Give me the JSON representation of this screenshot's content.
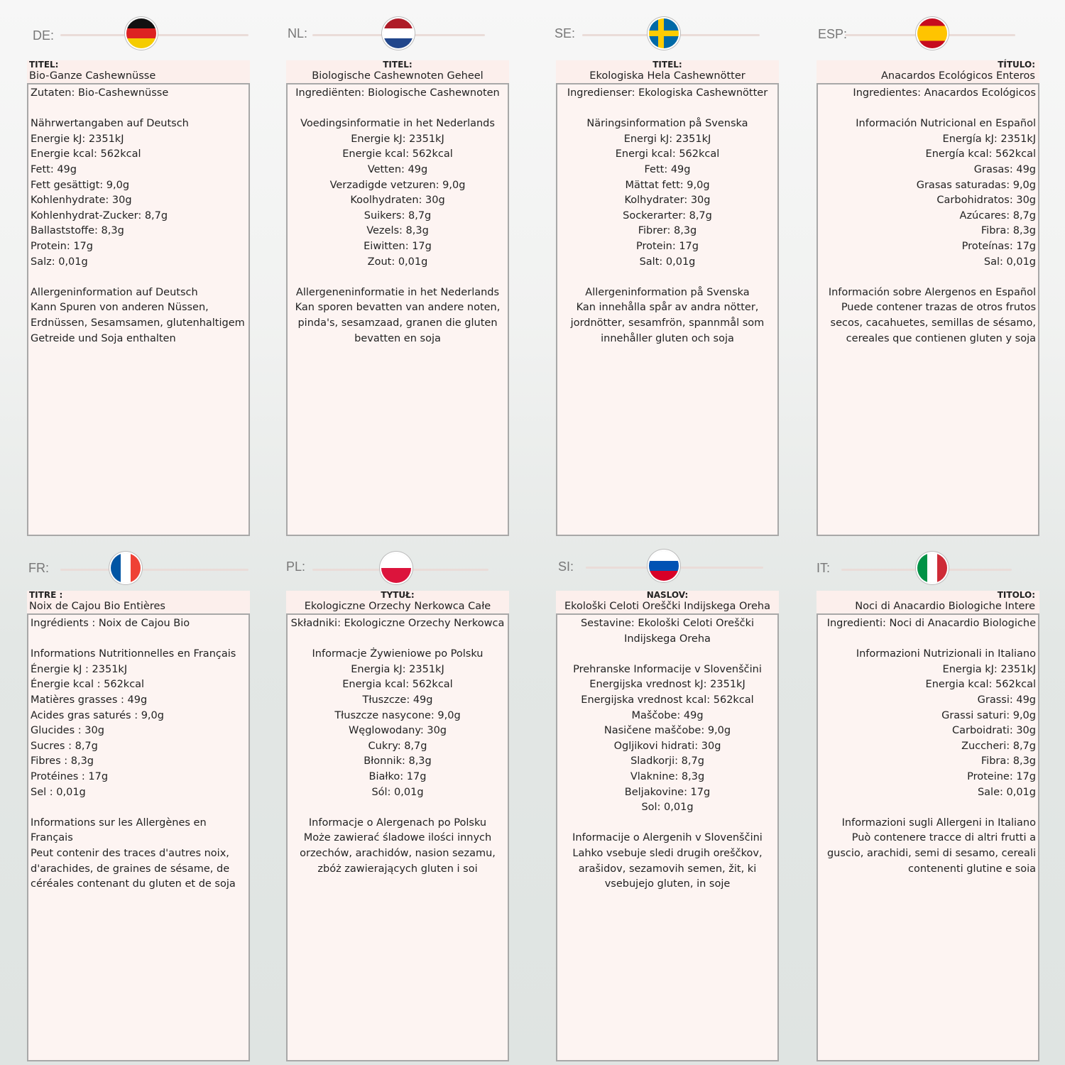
{
  "panels": [
    {
      "lang": "DE:",
      "flag": "germany",
      "title_label": "TITEL:",
      "title": "Bio-Ganze Cashewnüsse",
      "lines": [
        "Zutaten: Bio-Cashewnüsse",
        "",
        "Nährwertangaben auf Deutsch",
        "Energie kJ: 2351kJ",
        "Energie kcal: 562kcal",
        "Fett: 49g",
        "Fett gesättigt: 9,0g",
        "Kohlenhydrate: 30g",
        "Kohlenhydrat-Zucker: 8,7g",
        "Ballaststoffe: 8,3g",
        "Protein: 17g",
        "Salz: 0,01g",
        "",
        "Allergeninformation auf Deutsch",
        "Kann Spuren von anderen Nüssen,",
        "Erdnüssen, Sesamsamen, glutenhaltigem",
        "Getreide und Soja enthalten"
      ]
    },
    {
      "lang": "NL:",
      "flag": "netherlands",
      "title_label": "TITEL:",
      "title": "Biologische Cashewnoten Geheel",
      "lines": [
        "Ingrediënten: Biologische Cashewnoten",
        "",
        "Voedingsinformatie in het Nederlands",
        "Energie kJ: 2351kJ",
        "Energie kcal: 562kcal",
        "Vetten: 49g",
        "Verzadigde vetzuren: 9,0g",
        "Koolhydraten: 30g",
        "Suikers: 8,7g",
        "Vezels: 8,3g",
        "Eiwitten: 17g",
        "Zout: 0,01g",
        "",
        "Allergeneninformatie in het Nederlands",
        "Kan sporen bevatten van andere noten,",
        "pinda's, sesamzaad, granen die gluten",
        "bevatten en soja"
      ]
    },
    {
      "lang": "SE:",
      "flag": "sweden",
      "title_label": "TITEL:",
      "title": "Ekologiska Hela Cashewnötter",
      "lines": [
        "Ingredienser: Ekologiska Cashewnötter",
        "",
        "Näringsinformation på Svenska",
        "Energi kJ: 2351kJ",
        "Energi kcal: 562kcal",
        "Fett: 49g",
        "Mättat fett: 9,0g",
        "Kolhydrater: 30g",
        "Sockerarter: 8,7g",
        "Fibrer: 8,3g",
        "Protein: 17g",
        "Salt: 0,01g",
        "",
        "Allergeninformation på Svenska",
        "Kan innehålla spår av andra nötter,",
        "jordnötter, sesamfrön, spannmål som",
        "innehåller gluten och soja"
      ]
    },
    {
      "lang": "ESP:",
      "flag": "spain",
      "title_label": "TÍTULO:",
      "title": "Anacardos Ecológicos Enteros",
      "lines": [
        "Ingredientes: Anacardos Ecológicos",
        "",
        "Información Nutricional en Español",
        "Energía kJ: 2351kJ",
        "Energía kcal: 562kcal",
        "Grasas: 49g",
        "Grasas saturadas: 9,0g",
        "Carbohidratos: 30g",
        "Azúcares: 8,7g",
        "Fibra: 8,3g",
        "Proteínas: 17g",
        "Sal: 0,01g",
        "",
        "Información sobre Alergenos en Español",
        "Puede contener trazas de otros frutos",
        "secos, cacahuetes, semillas de sésamo,",
        "cereales que contienen gluten y soja"
      ]
    },
    {
      "lang": "FR:",
      "flag": "france",
      "title_label": "TITRE :",
      "title": "Noix de Cajou Bio Entières",
      "lines": [
        "Ingrédients : Noix de Cajou Bio",
        "",
        "Informations Nutritionnelles en Français",
        "Énergie kJ : 2351kJ",
        "Énergie kcal : 562kcal",
        "Matières grasses : 49g",
        "Acides gras saturés : 9,0g",
        "Glucides : 30g",
        "Sucres : 8,7g",
        "Fibres : 8,3g",
        "Protéines : 17g",
        "Sel : 0,01g",
        "",
        "Informations sur les Allergènes en",
        "Français",
        "Peut contenir des traces d'autres noix,",
        "d'arachides, de graines de sésame, de",
        "céréales contenant du gluten et de soja"
      ]
    },
    {
      "lang": "PL:",
      "flag": "poland",
      "title_label": "TYTUŁ:",
      "title": "Ekologiczne Orzechy Nerkowca Całe",
      "lines": [
        "Składniki: Ekologiczne Orzechy Nerkowca",
        "",
        "Informacje Żywieniowe po Polsku",
        "Energia kJ: 2351kJ",
        "Energia kcal: 562kcal",
        "Tłuszcze: 49g",
        "Tłuszcze nasycone: 9,0g",
        "Węglowodany: 30g",
        "Cukry: 8,7g",
        "Błonnik: 8,3g",
        "Białko: 17g",
        "Sól: 0,01g",
        "",
        "Informacje o Alergenach po Polsku",
        "Może zawierać śladowe ilości innych",
        "orzechów, arachidów, nasion sezamu,",
        "zbóż zawierających gluten i soi"
      ]
    },
    {
      "lang": "SI:",
      "flag": "slovenia",
      "title_label": "NASLOV:",
      "title": "Ekološki Celoti Oreščki Indijskega Oreha",
      "lines": [
        "Sestavine: Ekološki Celoti Oreščki",
        "Indijskega Oreha",
        "",
        "Prehranske Informacije v Slovenščini",
        "Energijska vrednost kJ: 2351kJ",
        "Energijska vrednost kcal: 562kcal",
        "Maščobe: 49g",
        "Nasičene maščobe: 9,0g",
        "Ogljikovi hidrati: 30g",
        "Sladkorji: 8,7g",
        "Vlaknine: 8,3g",
        "Beljakovine: 17g",
        "Sol: 0,01g",
        "",
        "Informacije o Alergenih v Slovenščini",
        "Lahko vsebuje sledi drugih oreščkov,",
        "arašidov, sezamovih semen, žit, ki",
        "vsebujejo gluten, in soje"
      ]
    },
    {
      "lang": "IT:",
      "flag": "italy",
      "title_label": "TITOLO:",
      "title": "Noci di Anacardio Biologiche Intere",
      "lines": [
        "Ingredienti: Noci di Anacardio Biologiche",
        "",
        "Informazioni Nutrizionali in Italiano",
        "Energia kJ: 2351kJ",
        "Energia kcal: 562kcal",
        "Grassi: 49g",
        "Grassi saturi: 9,0g",
        "Carboidrati: 30g",
        "Zuccheri: 8,7g",
        "Fibra: 8,3g",
        "Proteine: 17g",
        "Sale: 0,01g",
        "",
        "Informazioni sugli Allergeni in Italiano",
        "Può contenere tracce di altri frutti a",
        "guscio, arachidi, semi di sesamo, cereali",
        "contenenti glutine e soia"
      ]
    }
  ]
}
